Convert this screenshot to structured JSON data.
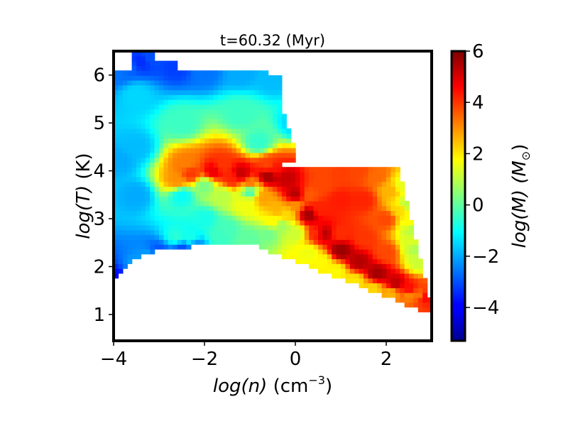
{
  "chart_data": {
    "type": "heatmap",
    "title": "t=60.32 (Myr)",
    "xlabel_var": "log(n)",
    "xlabel_unit": "(cm",
    "xlabel_exp": "−3",
    "xlabel_close": ")",
    "ylabel_var": "log(T)",
    "ylabel_unit": "(K)",
    "colorbar_label": "log(M) (M",
    "colorbar_label_sub": "⊙",
    "colorbar_label_close": ")",
    "colormap": "jet",
    "xlim": [
      -4.0,
      3.0
    ],
    "ylim": [
      0.45,
      6.5
    ],
    "clim": [
      -5.3,
      6.0
    ],
    "xticks": [
      -4,
      -2,
      0,
      2
    ],
    "xtick_labels": [
      "−4",
      "−2",
      "0",
      "2"
    ],
    "yticks": [
      1,
      2,
      3,
      4,
      5,
      6
    ],
    "ytick_labels": [
      "1",
      "2",
      "3",
      "4",
      "5",
      "6"
    ],
    "cbar_ticks": [
      -4,
      -2,
      0,
      2,
      4,
      6
    ],
    "cbar_tick_labels": [
      "−4",
      "−2",
      "0",
      "2",
      "4",
      "6"
    ],
    "bins": {
      "nx": 70,
      "ny": 60
    },
    "cells": [
      [
        -3.88,
        4.22,
        -2.0
      ],
      [
        -3.5,
        4.5,
        -1.8
      ],
      [
        -3.5,
        5.6,
        -1.5
      ],
      [
        -3.5,
        3.5,
        -2.0
      ],
      [
        -3.9,
        6.08,
        -2.6
      ],
      [
        -3.7,
        6.18,
        -2.8
      ],
      [
        -3.4,
        6.3,
        -3.4
      ],
      [
        -3.2,
        6.38,
        -3.0
      ],
      [
        -2.6,
        6.2,
        -3.2
      ],
      [
        -2.0,
        6.1,
        -2.6
      ],
      [
        -1.2,
        6.08,
        -2.0
      ],
      [
        -0.5,
        5.95,
        -1.8
      ],
      [
        -3.5,
        2.0,
        -2.0
      ],
      [
        -3.2,
        2.2,
        -2.0
      ],
      [
        -3.0,
        2.3,
        -3.0
      ],
      [
        -2.5,
        2.4,
        -3.0
      ],
      [
        -2.5,
        5.0,
        -0.4
      ],
      [
        -1.2,
        5.2,
        -0.4
      ],
      [
        -0.8,
        4.6,
        -0.5
      ],
      [
        0.0,
        5.0,
        -1.5
      ],
      [
        -2.0,
        3.0,
        -0.8
      ],
      [
        -2.5,
        3.5,
        -1.0
      ],
      [
        -1.0,
        3.6,
        -0.6
      ],
      [
        -1.5,
        2.8,
        -0.3
      ],
      [
        -1.0,
        2.62,
        0.0
      ],
      [
        -0.6,
        2.7,
        0.2
      ],
      [
        -0.3,
        2.85,
        0.7
      ],
      [
        0.0,
        2.7,
        1.2
      ],
      [
        -2.6,
        2.62,
        -0.6
      ],
      [
        -2.3,
        2.6,
        -0.8
      ],
      [
        -1.7,
        2.65,
        -0.4
      ],
      [
        0.3,
        2.3,
        1.6
      ],
      [
        0.6,
        2.1,
        1.8
      ],
      [
        0.9,
        1.9,
        1.8
      ],
      [
        1.3,
        1.7,
        2.0
      ],
      [
        1.7,
        1.55,
        2.2
      ],
      [
        2.1,
        1.45,
        2.6
      ],
      [
        2.5,
        1.42,
        3.0
      ],
      [
        2.75,
        1.4,
        2.8
      ],
      [
        -0.2,
        3.1,
        2.2
      ],
      [
        0.0,
        3.3,
        3.0
      ],
      [
        0.3,
        3.5,
        3.6
      ],
      [
        0.6,
        3.75,
        3.8
      ],
      [
        1.0,
        3.95,
        3.9
      ],
      [
        1.4,
        4.0,
        3.8
      ],
      [
        1.8,
        3.9,
        3.4
      ],
      [
        2.1,
        3.6,
        2.6
      ],
      [
        2.3,
        3.2,
        2.2
      ],
      [
        2.5,
        2.9,
        1.8
      ],
      [
        2.6,
        2.5,
        1.4
      ],
      [
        2.7,
        2.1,
        1.2
      ],
      [
        0.5,
        3.2,
        4.2
      ],
      [
        1.0,
        3.4,
        4.3
      ],
      [
        1.5,
        3.4,
        4.2
      ],
      [
        2.0,
        3.0,
        3.8
      ],
      [
        0.5,
        2.7,
        4.0
      ],
      [
        1.0,
        2.7,
        4.1
      ],
      [
        1.5,
        2.6,
        4.0
      ],
      [
        2.0,
        2.3,
        3.8
      ],
      [
        -1.8,
        4.0,
        4.8
      ],
      [
        -1.2,
        3.95,
        5.2
      ],
      [
        -0.6,
        3.9,
        5.6
      ],
      [
        -0.2,
        3.85,
        5.2
      ],
      [
        0.0,
        3.5,
        5.4
      ],
      [
        0.3,
        3.1,
        5.6
      ],
      [
        0.6,
        2.7,
        5.5
      ],
      [
        1.0,
        2.35,
        5.7
      ],
      [
        1.4,
        2.1,
        5.4
      ],
      [
        1.8,
        1.85,
        5.6
      ],
      [
        2.2,
        1.65,
        5.3
      ],
      [
        2.5,
        1.52,
        4.6
      ],
      [
        2.8,
        1.38,
        5.0
      ],
      [
        -2.3,
        3.95,
        4.0
      ],
      [
        -2.6,
        3.8,
        3.0
      ],
      [
        -2.4,
        4.15,
        3.2
      ],
      [
        -1.6,
        4.12,
        4.0
      ],
      [
        -0.6,
        4.12,
        3.8
      ],
      [
        0.6,
        4.08,
        3.8
      ],
      [
        -0.5,
        4.05,
        4.4
      ],
      [
        -1.4,
        3.85,
        4.2
      ],
      [
        -1.0,
        3.7,
        3.4
      ],
      [
        -0.7,
        3.45,
        2.8
      ],
      [
        -0.4,
        3.2,
        2.6
      ],
      [
        -1.1,
        3.3,
        1.6
      ],
      [
        -1.6,
        3.5,
        1.0
      ],
      [
        -0.5,
        2.95,
        1.8
      ],
      [
        -2.0,
        3.7,
        0.3
      ],
      [
        -3.95,
        1.6,
        -4.5
      ],
      [
        -3.85,
        1.45,
        -5.2
      ],
      [
        -3.95,
        1.0,
        -4.2
      ],
      [
        -3.95,
        0.6,
        -4.5
      ],
      [
        -2.2,
        2.45,
        -2.4
      ],
      [
        -3.0,
        2.1,
        -3.6
      ],
      [
        -3.5,
        1.8,
        -3.3
      ],
      [
        -3.8,
        1.7,
        -3.8
      ],
      [
        2.35,
        3.7,
        1.5
      ],
      [
        2.45,
        3.3,
        1.0
      ],
      [
        2.55,
        2.8,
        0.9
      ],
      [
        2.65,
        2.4,
        0.8
      ]
    ]
  }
}
